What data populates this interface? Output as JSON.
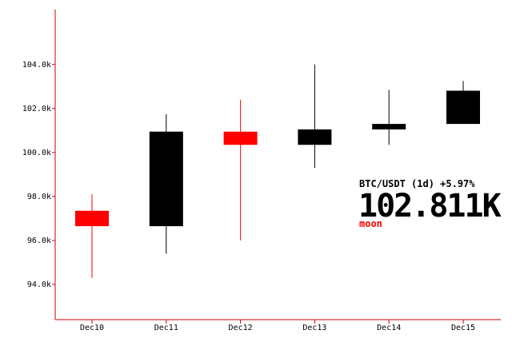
{
  "chart_data": {
    "type": "candlestick",
    "title": "",
    "xlabel": "",
    "ylabel": "",
    "ylim": [
      92400,
      106500
    ],
    "grid": false,
    "yticks": [
      {
        "value": 94000,
        "label": "94.0k"
      },
      {
        "value": 96000,
        "label": "96.0k"
      },
      {
        "value": 98000,
        "label": "98.0k"
      },
      {
        "value": 100000,
        "label": "100.0k"
      },
      {
        "value": 102000,
        "label": "102.0k"
      },
      {
        "value": 104000,
        "label": "104.0k"
      }
    ],
    "categories": [
      "Dec10",
      "Dec11",
      "Dec12",
      "Dec13",
      "Dec14",
      "Dec15"
    ],
    "candles": [
      {
        "date": "Dec10",
        "open": 97350,
        "high": 98100,
        "low": 94300,
        "close": 96650
      },
      {
        "date": "Dec11",
        "open": 96650,
        "high": 101750,
        "low": 95400,
        "close": 100950
      },
      {
        "date": "Dec12",
        "open": 100950,
        "high": 102400,
        "low": 96000,
        "close": 100350
      },
      {
        "date": "Dec13",
        "open": 100350,
        "high": 104000,
        "low": 99300,
        "close": 101050
      },
      {
        "date": "Dec14",
        "open": 101050,
        "high": 102850,
        "low": 100350,
        "close": 101300
      },
      {
        "date": "Dec15",
        "open": 101300,
        "high": 103250,
        "low": 101300,
        "close": 102811
      }
    ],
    "colors": {
      "up": "#000000",
      "down": "#ff0000",
      "axis": "#cc0000"
    }
  },
  "ticker": {
    "pair_line": "BTC/USDT (1d) +5.97%",
    "price": "102.811K",
    "status": "moon",
    "status_color": "#ff0000"
  }
}
